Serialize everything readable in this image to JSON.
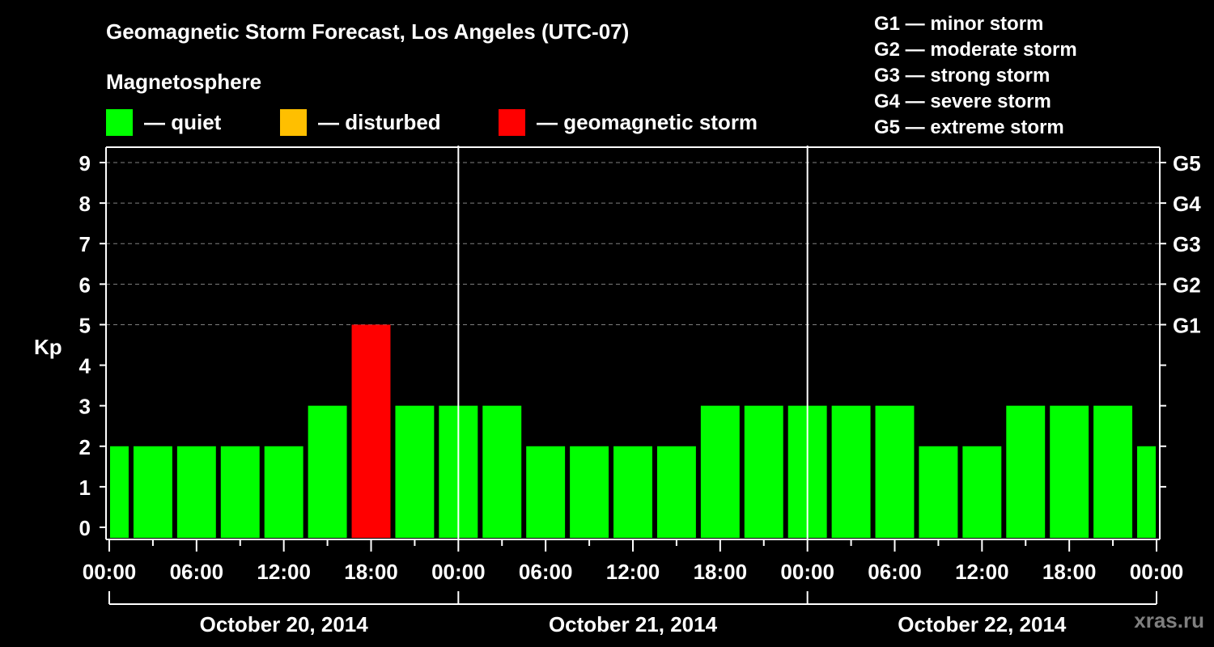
{
  "header": {
    "title": "Geomagnetic Storm Forecast, Los Angeles (UTC-07)",
    "subtitle": "Magnetosphere"
  },
  "legend": [
    {
      "label": "— quiet",
      "color": "#00ff00"
    },
    {
      "label": "— disturbed",
      "color": "#ffbf00"
    },
    {
      "label": "— geomagnetic storm",
      "color": "#ff0000"
    }
  ],
  "storm_scale": [
    "G1 — minor storm",
    "G2 — moderate storm",
    "G3 — strong storm",
    "G4 — severe storm",
    "G5 — extreme storm"
  ],
  "watermark": "xras.ru",
  "colors": {
    "quiet": "#00ff00",
    "disturbed": "#ffbf00",
    "storm": "#ff0000",
    "grid": "#808080",
    "axis": "#ffffff"
  },
  "chart_data": {
    "type": "bar",
    "title": "Geomagnetic Storm Forecast, Los Angeles (UTC-07)",
    "xlabel": "",
    "ylabel": "Kp",
    "ylim": [
      0,
      9
    ],
    "yticks": [
      0,
      1,
      2,
      3,
      4,
      5,
      6,
      7,
      8,
      9
    ],
    "right_axis_labels": [
      {
        "kp": 5,
        "label": "G1"
      },
      {
        "kp": 6,
        "label": "G2"
      },
      {
        "kp": 7,
        "label": "G3"
      },
      {
        "kp": 8,
        "label": "G4"
      },
      {
        "kp": 9,
        "label": "G5"
      }
    ],
    "grid": true,
    "xtick_labels": [
      "00:00",
      "06:00",
      "12:00",
      "18:00",
      "00:00",
      "06:00",
      "12:00",
      "18:00",
      "00:00",
      "06:00",
      "12:00",
      "18:00",
      "00:00"
    ],
    "dates": [
      "October 20, 2014",
      "October 21, 2014",
      "October 22, 2014"
    ],
    "categories": [
      "Oct 20 00:00",
      "Oct 20 01:30",
      "Oct 20 04:30",
      "Oct 20 07:30",
      "Oct 20 10:30",
      "Oct 20 13:30",
      "Oct 20 16:30",
      "Oct 20 19:30",
      "Oct 20 22:30",
      "Oct 21 01:30",
      "Oct 21 04:30",
      "Oct 21 07:30",
      "Oct 21 10:30",
      "Oct 21 13:30",
      "Oct 21 16:30",
      "Oct 21 19:30",
      "Oct 21 22:30",
      "Oct 22 01:30",
      "Oct 22 04:30",
      "Oct 22 07:30",
      "Oct 22 10:30",
      "Oct 22 13:30",
      "Oct 22 16:30",
      "Oct 22 19:30",
      "Oct 22 22:30"
    ],
    "start_hours": [
      0,
      1.5,
      4.5,
      7.5,
      10.5,
      13.5,
      16.5,
      19.5,
      22.5,
      25.5,
      28.5,
      31.5,
      34.5,
      37.5,
      40.5,
      43.5,
      46.5,
      49.5,
      52.5,
      55.5,
      58.5,
      61.5,
      64.5,
      67.5,
      70.5
    ],
    "end_hours": [
      1.5,
      4.5,
      7.5,
      10.5,
      13.5,
      16.5,
      19.5,
      22.5,
      25.5,
      28.5,
      31.5,
      34.5,
      37.5,
      40.5,
      43.5,
      46.5,
      49.5,
      52.5,
      55.5,
      58.5,
      61.5,
      64.5,
      67.5,
      70.5,
      72
    ],
    "values": [
      2,
      2,
      2,
      2,
      2,
      3,
      5,
      3,
      3,
      3,
      2,
      2,
      2,
      2,
      3,
      3,
      3,
      3,
      3,
      2,
      2,
      3,
      3,
      3,
      2
    ],
    "levels": [
      "quiet",
      "quiet",
      "quiet",
      "quiet",
      "quiet",
      "quiet",
      "storm",
      "quiet",
      "quiet",
      "quiet",
      "quiet",
      "quiet",
      "quiet",
      "quiet",
      "quiet",
      "quiet",
      "quiet",
      "quiet",
      "quiet",
      "quiet",
      "quiet",
      "quiet",
      "quiet",
      "quiet",
      "quiet"
    ]
  }
}
